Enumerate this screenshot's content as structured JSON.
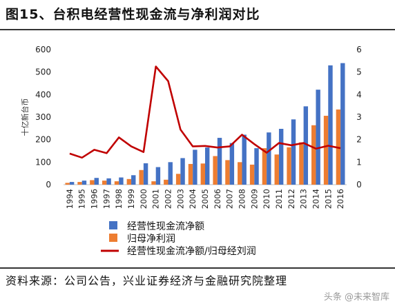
{
  "title": "图15、台积电经营性现金流与净利润对比",
  "source": "资料来源：公司公告，兴业证券经济与金融研究院整理",
  "watermark": "头条 @未来智库",
  "chart_data": {
    "type": "bar",
    "title": "图15、台积电经营性现金流与净利润对比",
    "ylabel": "十亿新台币",
    "ylim": [
      0,
      600
    ],
    "y2lim": [
      0,
      6
    ],
    "yticks": [
      0,
      100,
      200,
      300,
      400,
      500,
      600
    ],
    "y2ticks": [
      0,
      1,
      2,
      3,
      4,
      5,
      6
    ],
    "categories": [
      "1994",
      "1995",
      "1996",
      "1997",
      "1998",
      "1999",
      "2000",
      "2001",
      "2002",
      "2003",
      "2004",
      "2005",
      "2006",
      "2007",
      "2008",
      "2009",
      "2010",
      "2011",
      "2012",
      "2013",
      "2014",
      "2015",
      "2016"
    ],
    "series": [
      {
        "name": "经营性现金流净额",
        "type": "bar",
        "axis": "left",
        "color": "#4472C4",
        "values": [
          12,
          18,
          30,
          28,
          32,
          42,
          95,
          78,
          100,
          118,
          155,
          165,
          208,
          185,
          222,
          162,
          232,
          248,
          290,
          348,
          422,
          530,
          540
        ]
      },
      {
        "name": "归母净利润",
        "type": "bar",
        "axis": "left",
        "color": "#ED7D31",
        "values": [
          8,
          12,
          20,
          18,
          15,
          25,
          65,
          15,
          22,
          48,
          92,
          94,
          127,
          109,
          100,
          89,
          162,
          134,
          166,
          188,
          264,
          306,
          334
        ]
      },
      {
        "name": "经营性现金流净额/归母经刘润",
        "type": "line",
        "axis": "right",
        "color": "#C00000",
        "values": [
          1.38,
          1.2,
          1.55,
          1.4,
          2.1,
          1.7,
          1.45,
          5.25,
          4.6,
          2.45,
          1.7,
          1.72,
          1.65,
          1.7,
          2.22,
          1.8,
          1.42,
          1.85,
          1.75,
          1.85,
          1.6,
          1.73,
          1.62
        ]
      }
    ],
    "legend_position": "bottom",
    "grid": false
  }
}
